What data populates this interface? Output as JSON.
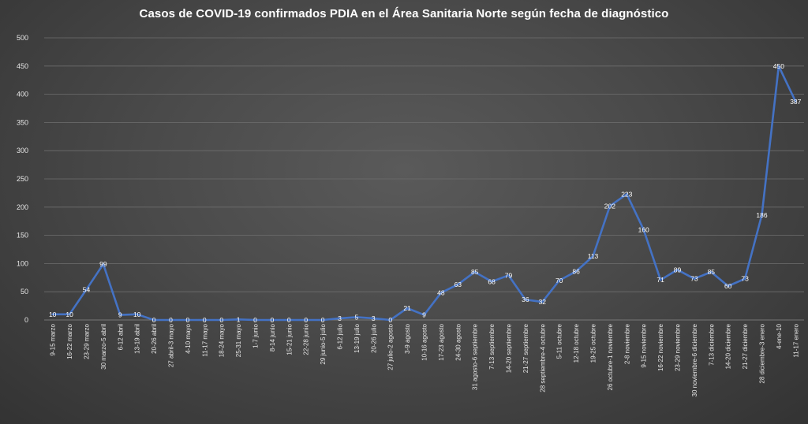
{
  "chart_data": {
    "type": "line",
    "title": "Casos de COVID-19 confirmados PDIA en el Área Sanitaria Norte según fecha de diagnóstico",
    "xlabel": "",
    "ylabel": "",
    "ylim": [
      0,
      500
    ],
    "yticks": [
      0,
      50,
      100,
      150,
      200,
      250,
      300,
      350,
      400,
      450,
      500
    ],
    "grid": true,
    "legend": "none",
    "categories": [
      "9-15 marzo",
      "16-22 marzo",
      "23-29 marzo",
      "30 marzo-5 abril",
      "6-12 abril",
      "13-19 abril",
      "20-26 abril",
      "27 abril-3 mayo",
      "4-10 mayo",
      "11-17 mayo",
      "18-24 mayo",
      "25-31 mayo",
      "1-7 junio",
      "8-14 junio",
      "15-21 junio",
      "22-28 junio",
      "29 junio-5 julio",
      "6-12 julio",
      "13-19 julio",
      "20-26 julio",
      "27 julio-2 agosto",
      "3-9 agosto",
      "10-16 agosto",
      "17-23 agosto",
      "24-30 agosto",
      "31 agosto-6 septiembre",
      "7-13 septiembre",
      "14-20 septiembre",
      "21-27 septiembre",
      "28 septiembre-4 octubre",
      "5-11 octubre",
      "12-18 octubre",
      "19-25 octubre",
      "26 octubre-1 noviembre",
      "2-8 noviembre",
      "9-15 noviembre",
      "16-22 noviembre",
      "23-29 noviembre",
      "30 noviembre-6 diciembre",
      "7-13 diciembre",
      "14-20 diciembre",
      "21-27 diciembre",
      "28 diciembre-3 enero",
      "4-ene-10",
      "11-17 enero"
    ],
    "values": [
      10,
      10,
      54,
      99,
      9,
      10,
      0,
      0,
      0,
      0,
      0,
      1,
      0,
      0,
      0,
      0,
      0,
      3,
      5,
      3,
      0,
      21,
      9,
      48,
      63,
      85,
      68,
      79,
      36,
      32,
      70,
      86,
      113,
      202,
      223,
      160,
      71,
      89,
      73,
      85,
      60,
      73,
      186,
      450,
      387
    ],
    "colors": {
      "line": "#4472c4",
      "grid": "#6e6e6e",
      "text": "#e6e6e6"
    }
  }
}
